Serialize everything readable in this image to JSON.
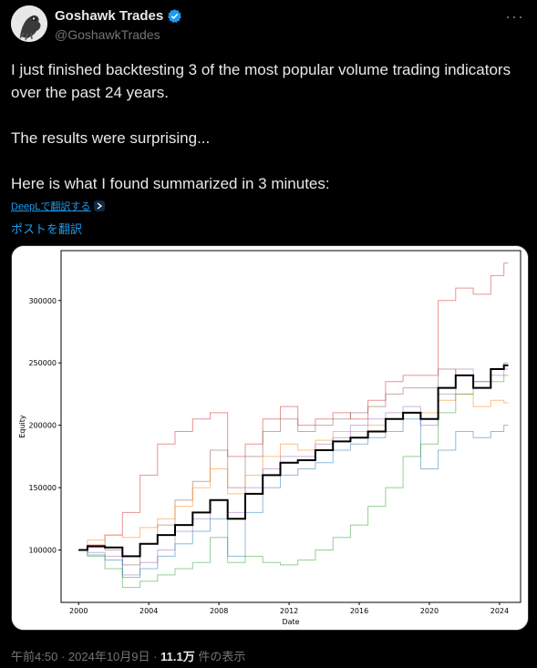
{
  "author": {
    "name": "Goshawk Trades",
    "handle": "@GoshawkTrades"
  },
  "post": {
    "line1": "I just finished backtesting 3 of the most popular volume trading indicators over the past 24 years.",
    "line2": "The results were surprising...",
    "line3": "Here is what I found summarized in 3 minutes:",
    "deepl_label": "DeepLで翻訳する",
    "translate_label": "ポストを翻訳"
  },
  "footer": {
    "time": "午前4:50",
    "date": "2024年10月9日",
    "views": "11.1万",
    "views_suffix": "件の表示",
    "separator": "·"
  },
  "chart_data": {
    "type": "line",
    "xlabel": "Date",
    "ylabel": "Equity",
    "xlim": [
      1999,
      2025.2
    ],
    "ylim": [
      58000,
      340000
    ],
    "x_ticks": [
      2000,
      2004,
      2008,
      2012,
      2016,
      2020,
      2024
    ],
    "y_ticks": [
      100000,
      150000,
      200000,
      250000,
      300000
    ],
    "grid": false,
    "legend": false,
    "series": [
      {
        "color": "#d62728",
        "x": [
          2000,
          2001,
          2002,
          2003,
          2004,
          2005,
          2006,
          2007,
          2008,
          2009,
          2010,
          2011,
          2012,
          2013,
          2014,
          2015,
          2016,
          2017,
          2018,
          2019,
          2020,
          2021,
          2022,
          2023,
          2024,
          2024.5
        ],
        "values": [
          100000,
          104000,
          112000,
          130000,
          160000,
          185000,
          195000,
          205000,
          210000,
          175000,
          185000,
          205000,
          215000,
          200000,
          205000,
          210000,
          205000,
          220000,
          235000,
          240000,
          240000,
          300000,
          310000,
          305000,
          320000,
          330000
        ]
      },
      {
        "color": "#8c564b",
        "x": [
          2000,
          2001,
          2002,
          2003,
          2004,
          2005,
          2006,
          2007,
          2008,
          2009,
          2010,
          2011,
          2012,
          2013,
          2014,
          2015,
          2016,
          2017,
          2018,
          2019,
          2020,
          2021,
          2022,
          2023,
          2024,
          2024.5
        ],
        "values": [
          100000,
          102000,
          100000,
          88000,
          105000,
          120000,
          140000,
          155000,
          180000,
          150000,
          175000,
          195000,
          205000,
          195000,
          200000,
          205000,
          210000,
          215000,
          225000,
          230000,
          230000,
          245000,
          240000,
          235000,
          245000,
          250000
        ]
      },
      {
        "color": "#ff7f0e",
        "x": [
          2000,
          2001,
          2002,
          2003,
          2004,
          2005,
          2006,
          2007,
          2008,
          2009,
          2010,
          2011,
          2012,
          2013,
          2014,
          2015,
          2016,
          2017,
          2018,
          2019,
          2020,
          2021,
          2022,
          2023,
          2024,
          2024.5
        ],
        "values": [
          100000,
          108000,
          112000,
          110000,
          118000,
          125000,
          135000,
          150000,
          165000,
          145000,
          160000,
          175000,
          185000,
          180000,
          188000,
          195000,
          195000,
          200000,
          205000,
          210000,
          210000,
          220000,
          225000,
          215000,
          220000,
          218000
        ]
      },
      {
        "color": "#9467bd",
        "x": [
          2000,
          2001,
          2002,
          2003,
          2004,
          2005,
          2006,
          2007,
          2008,
          2009,
          2010,
          2011,
          2012,
          2013,
          2014,
          2015,
          2016,
          2017,
          2018,
          2019,
          2020,
          2021,
          2022,
          2023,
          2024,
          2024.5
        ],
        "values": [
          100000,
          98000,
          95000,
          80000,
          90000,
          100000,
          115000,
          125000,
          140000,
          130000,
          150000,
          165000,
          175000,
          175000,
          185000,
          190000,
          200000,
          205000,
          210000,
          215000,
          200000,
          225000,
          245000,
          235000,
          240000,
          245000
        ]
      },
      {
        "color": "#1f77b4",
        "x": [
          2000,
          2001,
          2002,
          2003,
          2004,
          2005,
          2006,
          2007,
          2008,
          2009,
          2010,
          2011,
          2012,
          2013,
          2014,
          2015,
          2016,
          2017,
          2018,
          2019,
          2020,
          2021,
          2022,
          2023,
          2024,
          2024.5
        ],
        "values": [
          100000,
          96000,
          92000,
          78000,
          85000,
          95000,
          105000,
          115000,
          125000,
          95000,
          130000,
          150000,
          160000,
          165000,
          170000,
          180000,
          185000,
          190000,
          195000,
          205000,
          165000,
          180000,
          195000,
          190000,
          195000,
          200000
        ]
      },
      {
        "color": "#2ca02c",
        "x": [
          2000,
          2001,
          2002,
          2003,
          2004,
          2005,
          2006,
          2007,
          2008,
          2009,
          2010,
          2011,
          2012,
          2013,
          2014,
          2015,
          2016,
          2017,
          2018,
          2019,
          2020,
          2021,
          2022,
          2023,
          2024,
          2024.5
        ],
        "values": [
          100000,
          95000,
          85000,
          70000,
          75000,
          80000,
          85000,
          90000,
          110000,
          90000,
          95000,
          90000,
          88000,
          92000,
          100000,
          110000,
          120000,
          135000,
          150000,
          175000,
          185000,
          210000,
          225000,
          230000,
          235000,
          240000
        ]
      },
      {
        "color": "#000000",
        "x": [
          2000,
          2001,
          2002,
          2003,
          2004,
          2005,
          2006,
          2007,
          2008,
          2009,
          2010,
          2011,
          2012,
          2013,
          2014,
          2015,
          2016,
          2017,
          2018,
          2019,
          2020,
          2021,
          2022,
          2023,
          2024,
          2024.5
        ],
        "values": [
          100000,
          103000,
          102000,
          95000,
          105000,
          112000,
          120000,
          130000,
          140000,
          125000,
          145000,
          160000,
          170000,
          172000,
          180000,
          187000,
          190000,
          195000,
          205000,
          210000,
          205000,
          230000,
          240000,
          230000,
          245000,
          248000
        ]
      }
    ]
  }
}
